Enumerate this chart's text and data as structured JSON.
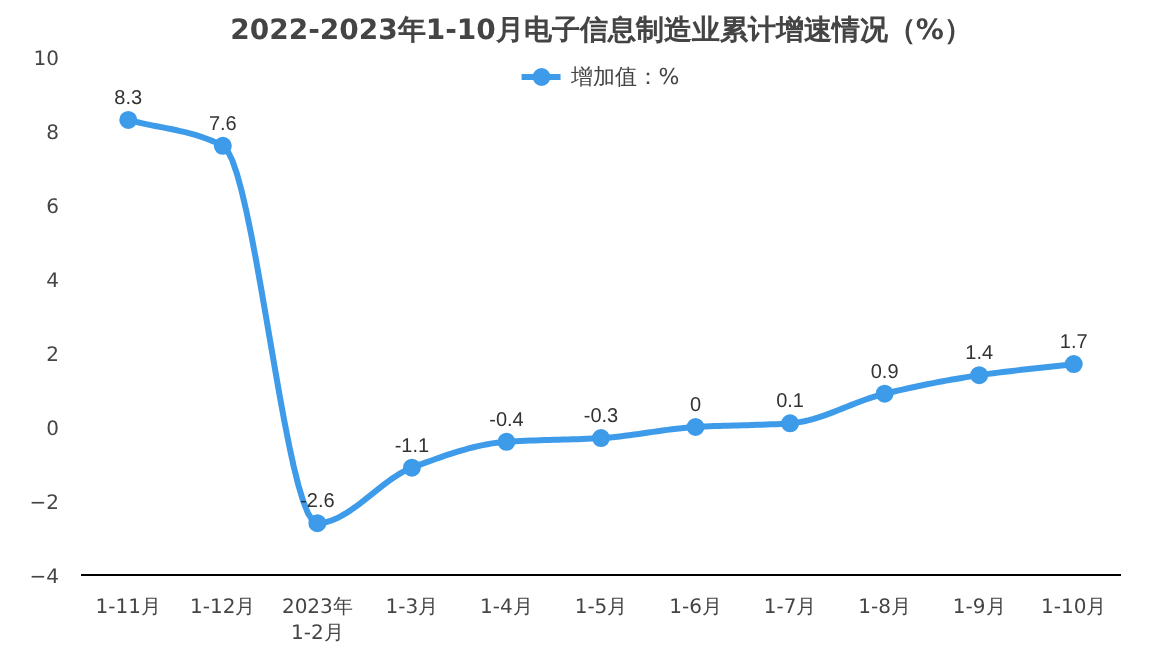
{
  "chart_data": {
    "type": "line",
    "title": "2022-2023年1-10月电子信息制造业累计增速情况（%）",
    "categories": [
      "1-11月",
      "1-12月",
      "2023年\n1-2月",
      "1-3月",
      "1-4月",
      "1-5月",
      "1-6月",
      "1-7月",
      "1-8月",
      "1-9月",
      "1-10月"
    ],
    "series": [
      {
        "name": "增加值：%",
        "color": "#3d9be9",
        "values": [
          8.3,
          7.6,
          -2.6,
          -1.1,
          -0.4,
          -0.3,
          0,
          0.1,
          0.9,
          1.4,
          1.7
        ]
      }
    ],
    "ylim": [
      -4,
      10
    ],
    "yticks": [
      -4,
      -2,
      0,
      2,
      4,
      6,
      8,
      10
    ],
    "grid": false,
    "legend": "top",
    "marker": "circle",
    "line_style": "solid",
    "data_labels": true
  }
}
